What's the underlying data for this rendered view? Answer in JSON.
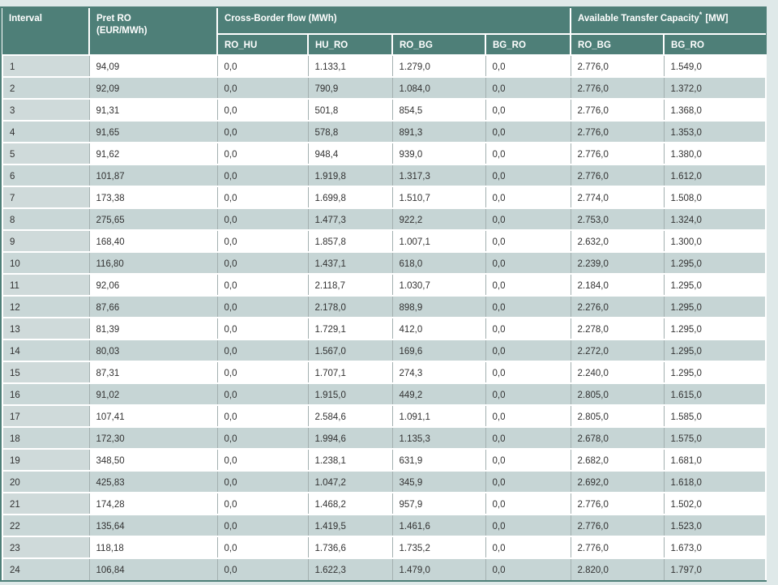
{
  "page": {
    "background_color": "#dfe9e9"
  },
  "colors": {
    "header_bg": "#4e7f78",
    "frame_border": "#4e7f78",
    "row_stripe": "#c6d5d5",
    "interval_column_bg": "#cfdada",
    "grid_line": "#a3b0b0",
    "header_text": "#ffffff",
    "cell_text": "#323232"
  },
  "table": {
    "headers": {
      "interval": "Interval",
      "pret_ro": [
        "Pret RO",
        "(EUR/MWh)"
      ],
      "cross_border_group": "Cross-Border flow (MWh)",
      "atc_group": {
        "label": "Available Transfer Capacity",
        "sup": "*",
        "unit": "[MW]"
      },
      "cross_border_subs": [
        "RO_HU",
        "HU_RO",
        "RO_BG",
        "BG_RO"
      ],
      "atc_subs": [
        "RO_BG",
        "BG_RO"
      ]
    },
    "rows": [
      [
        "1",
        "94,09",
        "0,0",
        "1.133,1",
        "1.279,0",
        "0,0",
        "2.776,0",
        "1.549,0"
      ],
      [
        "2",
        "92,09",
        "0,0",
        "790,9",
        "1.084,0",
        "0,0",
        "2.776,0",
        "1.372,0"
      ],
      [
        "3",
        "91,31",
        "0,0",
        "501,8",
        "854,5",
        "0,0",
        "2.776,0",
        "1.368,0"
      ],
      [
        "4",
        "91,65",
        "0,0",
        "578,8",
        "891,3",
        "0,0",
        "2.776,0",
        "1.353,0"
      ],
      [
        "5",
        "91,62",
        "0,0",
        "948,4",
        "939,0",
        "0,0",
        "2.776,0",
        "1.380,0"
      ],
      [
        "6",
        "101,87",
        "0,0",
        "1.919,8",
        "1.317,3",
        "0,0",
        "2.776,0",
        "1.612,0"
      ],
      [
        "7",
        "173,38",
        "0,0",
        "1.699,8",
        "1.510,7",
        "0,0",
        "2.774,0",
        "1.508,0"
      ],
      [
        "8",
        "275,65",
        "0,0",
        "1.477,3",
        "922,2",
        "0,0",
        "2.753,0",
        "1.324,0"
      ],
      [
        "9",
        "168,40",
        "0,0",
        "1.857,8",
        "1.007,1",
        "0,0",
        "2.632,0",
        "1.300,0"
      ],
      [
        "10",
        "116,80",
        "0,0",
        "1.437,1",
        "618,0",
        "0,0",
        "2.239,0",
        "1.295,0"
      ],
      [
        "11",
        "92,06",
        "0,0",
        "2.118,7",
        "1.030,7",
        "0,0",
        "2.184,0",
        "1.295,0"
      ],
      [
        "12",
        "87,66",
        "0,0",
        "2.178,0",
        "898,9",
        "0,0",
        "2.276,0",
        "1.295,0"
      ],
      [
        "13",
        "81,39",
        "0,0",
        "1.729,1",
        "412,0",
        "0,0",
        "2.278,0",
        "1.295,0"
      ],
      [
        "14",
        "80,03",
        "0,0",
        "1.567,0",
        "169,6",
        "0,0",
        "2.272,0",
        "1.295,0"
      ],
      [
        "15",
        "87,31",
        "0,0",
        "1.707,1",
        "274,3",
        "0,0",
        "2.240,0",
        "1.295,0"
      ],
      [
        "16",
        "91,02",
        "0,0",
        "1.915,0",
        "449,2",
        "0,0",
        "2.805,0",
        "1.615,0"
      ],
      [
        "17",
        "107,41",
        "0,0",
        "2.584,6",
        "1.091,1",
        "0,0",
        "2.805,0",
        "1.585,0"
      ],
      [
        "18",
        "172,30",
        "0,0",
        "1.994,6",
        "1.135,3",
        "0,0",
        "2.678,0",
        "1.575,0"
      ],
      [
        "19",
        "348,50",
        "0,0",
        "1.238,1",
        "631,9",
        "0,0",
        "2.682,0",
        "1.681,0"
      ],
      [
        "20",
        "425,83",
        "0,0",
        "1.047,2",
        "345,9",
        "0,0",
        "2.692,0",
        "1.618,0"
      ],
      [
        "21",
        "174,28",
        "0,0",
        "1.468,2",
        "957,9",
        "0,0",
        "2.776,0",
        "1.502,0"
      ],
      [
        "22",
        "135,64",
        "0,0",
        "1.419,5",
        "1.461,6",
        "0,0",
        "2.776,0",
        "1.523,0"
      ],
      [
        "23",
        "118,18",
        "0,0",
        "1.736,6",
        "1.735,2",
        "0,0",
        "2.776,0",
        "1.673,0"
      ],
      [
        "24",
        "106,84",
        "0,0",
        "1.622,3",
        "1.479,0",
        "0,0",
        "2.820,0",
        "1.797,0"
      ]
    ]
  }
}
